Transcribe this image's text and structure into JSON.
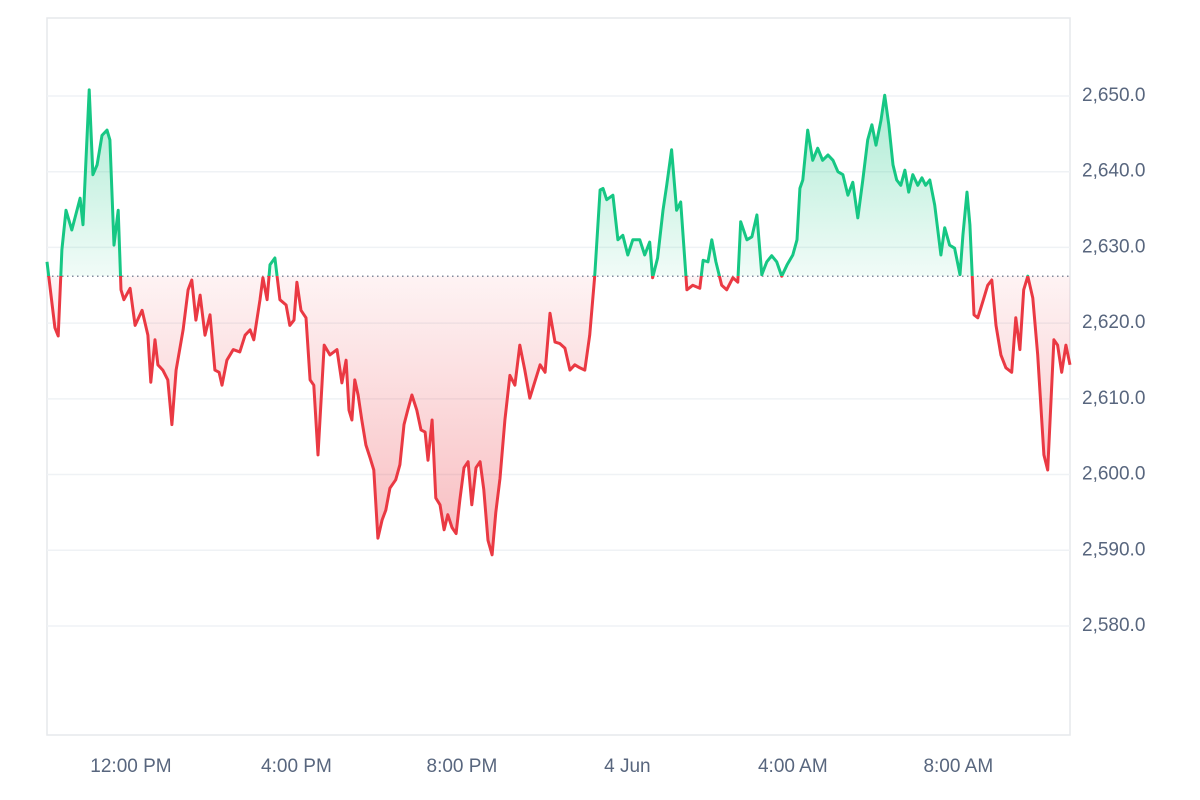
{
  "chart_data": {
    "type": "line",
    "x": [
      9.97,
      10.16,
      10.24,
      10.33,
      10.43,
      10.57,
      10.77,
      10.84,
      10.99,
      11.08,
      11.18,
      11.3,
      11.42,
      11.49,
      11.59,
      11.69,
      11.76,
      11.83,
      11.98,
      12.1,
      12.27,
      12.41,
      12.48,
      12.58,
      12.65,
      12.77,
      12.89,
      12.99,
      13.09,
      13.26,
      13.38,
      13.47,
      13.57,
      13.67,
      13.79,
      13.91,
      14.03,
      14.13,
      14.2,
      14.32,
      14.47,
      14.63,
      14.76,
      14.88,
      14.97,
      15.12,
      15.19,
      15.29,
      15.36,
      15.48,
      15.6,
      15.75,
      15.84,
      15.94,
      16.01,
      16.11,
      16.23,
      16.33,
      16.42,
      16.52,
      16.67,
      16.81,
      16.98,
      17.1,
      17.2,
      17.27,
      17.34,
      17.41,
      17.49,
      17.58,
      17.68,
      17.78,
      17.87,
      17.97,
      18.07,
      18.16,
      18.26,
      18.4,
      18.5,
      18.6,
      18.69,
      18.79,
      18.91,
      19.01,
      19.11,
      19.18,
      19.28,
      19.37,
      19.47,
      19.57,
      19.66,
      19.76,
      19.86,
      19.95,
      20.05,
      20.15,
      20.24,
      20.34,
      20.44,
      20.53,
      20.63,
      20.73,
      20.82,
      20.92,
      21.04,
      21.16,
      21.28,
      21.4,
      21.52,
      21.64,
      21.76,
      21.89,
      22.01,
      22.13,
      22.25,
      22.37,
      22.49,
      22.61,
      22.73,
      22.85,
      22.97,
      23.09,
      23.21,
      23.34,
      23.41,
      23.5,
      23.65,
      23.77,
      23.89,
      24.01,
      24.13,
      24.3,
      24.42,
      24.54,
      24.61,
      24.73,
      24.86,
      24.95,
      25.07,
      25.19,
      25.29,
      25.44,
      25.58,
      25.75,
      25.83,
      25.95,
      26.04,
      26.14,
      26.28,
      26.4,
      26.55,
      26.67,
      26.74,
      26.89,
      27.01,
      27.13,
      27.25,
      27.37,
      27.49,
      27.61,
      27.73,
      27.86,
      28.0,
      28.1,
      28.17,
      28.24,
      28.36,
      28.48,
      28.6,
      28.72,
      28.85,
      28.97,
      29.09,
      29.21,
      29.33,
      29.45,
      29.57,
      29.69,
      29.81,
      29.91,
      30.01,
      30.13,
      30.22,
      30.32,
      30.42,
      30.51,
      30.61,
      30.71,
      30.8,
      30.9,
      31.02,
      31.12,
      31.21,
      31.31,
      31.43,
      31.58,
      31.67,
      31.79,
      31.91,
      32.04,
      32.11,
      32.21,
      32.28,
      32.38,
      32.47,
      32.59,
      32.71,
      32.81,
      32.91,
      33.03,
      33.15,
      33.29,
      33.39,
      33.49,
      33.58,
      33.68,
      33.8,
      33.92,
      34.07,
      34.16,
      34.31,
      34.4,
      34.5,
      34.6,
      34.7
    ],
    "values": [
      2628.1,
      2619.4,
      2618.3,
      2629.7,
      2634.9,
      2632.3,
      2636.5,
      2633.0,
      2650.8,
      2639.6,
      2640.9,
      2644.8,
      2645.5,
      2644.2,
      2630.3,
      2634.9,
      2624.4,
      2623.1,
      2624.6,
      2619.7,
      2621.7,
      2618.4,
      2612.2,
      2617.8,
      2614.5,
      2613.8,
      2612.5,
      2606.6,
      2613.8,
      2619.1,
      2624.4,
      2625.7,
      2620.4,
      2623.7,
      2618.4,
      2621.1,
      2613.8,
      2613.5,
      2611.8,
      2615.1,
      2616.5,
      2616.2,
      2618.4,
      2619.1,
      2617.8,
      2623.1,
      2626.0,
      2623.1,
      2627.7,
      2628.6,
      2623.1,
      2622.4,
      2619.7,
      2620.4,
      2625.4,
      2621.7,
      2620.7,
      2612.5,
      2611.8,
      2602.6,
      2617.1,
      2615.8,
      2616.5,
      2612.1,
      2615.1,
      2608.5,
      2607.2,
      2612.5,
      2610.5,
      2607.2,
      2603.9,
      2602.2,
      2600.6,
      2591.6,
      2594.0,
      2595.3,
      2598.2,
      2599.3,
      2601.3,
      2606.6,
      2608.5,
      2610.5,
      2608.5,
      2605.9,
      2605.6,
      2601.9,
      2607.2,
      2596.9,
      2596.0,
      2592.7,
      2594.7,
      2593.0,
      2592.2,
      2596.6,
      2600.9,
      2601.7,
      2596.0,
      2600.9,
      2601.7,
      2598.0,
      2591.3,
      2589.4,
      2595.0,
      2599.5,
      2607.2,
      2613.1,
      2611.8,
      2617.1,
      2613.8,
      2610.1,
      2612.2,
      2614.5,
      2613.5,
      2621.3,
      2617.5,
      2617.3,
      2616.7,
      2613.8,
      2614.5,
      2614.1,
      2613.8,
      2618.4,
      2626.2,
      2637.6,
      2637.8,
      2636.3,
      2636.9,
      2631.0,
      2631.6,
      2629.0,
      2631.0,
      2631.0,
      2629.0,
      2630.7,
      2626.0,
      2628.6,
      2634.9,
      2638.2,
      2642.9,
      2634.9,
      2636.0,
      2624.4,
      2625.0,
      2624.6,
      2628.3,
      2628.1,
      2631.0,
      2628.1,
      2625.0,
      2624.4,
      2626.0,
      2625.4,
      2633.4,
      2631.0,
      2631.4,
      2634.3,
      2626.4,
      2628.1,
      2628.9,
      2628.1,
      2626.2,
      2627.7,
      2629.0,
      2631.0,
      2637.8,
      2638.9,
      2645.5,
      2641.5,
      2643.1,
      2641.5,
      2642.2,
      2641.5,
      2640.0,
      2639.6,
      2636.9,
      2638.6,
      2633.9,
      2638.9,
      2644.2,
      2646.2,
      2643.5,
      2646.8,
      2650.1,
      2646.2,
      2640.9,
      2638.9,
      2638.2,
      2640.2,
      2637.3,
      2639.6,
      2638.2,
      2639.2,
      2638.2,
      2638.9,
      2635.6,
      2629.0,
      2632.6,
      2630.3,
      2629.9,
      2626.4,
      2631.6,
      2637.3,
      2633.0,
      2621.1,
      2620.7,
      2622.8,
      2625.0,
      2625.7,
      2619.7,
      2615.8,
      2614.1,
      2613.5,
      2620.7,
      2616.5,
      2624.4,
      2626.2,
      2623.3,
      2615.8,
      2602.6,
      2600.6,
      2617.8,
      2617.1,
      2613.5,
      2617.1,
      2614.5
    ],
    "baseline": 2626.2,
    "colors": {
      "up": "#16c784",
      "down": "#ea3943"
    },
    "xlim": [
      9.97,
      34.7
    ],
    "xticks": [
      {
        "value": 12,
        "label": "12:00 PM"
      },
      {
        "value": 16,
        "label": "4:00 PM"
      },
      {
        "value": 20,
        "label": "8:00 PM"
      },
      {
        "value": 24,
        "label": "4 Jun"
      },
      {
        "value": 28,
        "label": "4:00 AM"
      },
      {
        "value": 32,
        "label": "8:00 AM"
      }
    ],
    "ylim": [
      2565.6,
      2660.3
    ],
    "yticks": [
      {
        "value": 2580,
        "label": "2,580.0"
      },
      {
        "value": 2590,
        "label": "2,590.0"
      },
      {
        "value": 2600,
        "label": "2,600.0"
      },
      {
        "value": 2610,
        "label": "2,610.0"
      },
      {
        "value": 2620,
        "label": "2,620.0"
      },
      {
        "value": 2630,
        "label": "2,630.0"
      },
      {
        "value": 2640,
        "label": "2,640.0"
      },
      {
        "value": 2650,
        "label": "2,650.0"
      }
    ],
    "grid": true
  }
}
